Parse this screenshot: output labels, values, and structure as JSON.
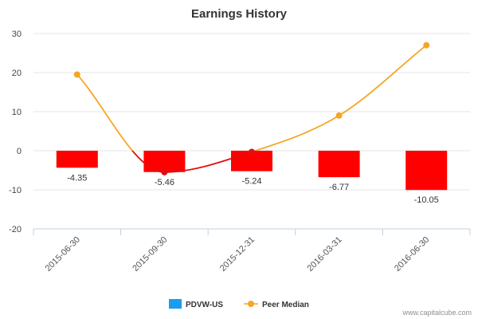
{
  "chart_data": {
    "type": "bar",
    "title": "Earnings History",
    "categories": [
      "2015-06-30",
      "2015-09-30",
      "2015-12-31",
      "2016-03-31",
      "2016-06-30"
    ],
    "series": [
      {
        "name": "PDVW-US",
        "type": "bar",
        "values": [
          -4.35,
          -5.46,
          -5.24,
          -6.77,
          -10.05
        ],
        "data_labels": [
          "-4.35",
          "-5.46",
          "-5.24",
          "-6.77",
          "-10.05"
        ]
      },
      {
        "name": "Peer Median",
        "type": "line",
        "values": [
          19.5,
          -5.5,
          -0.3,
          9.0,
          27.0
        ]
      }
    ],
    "ylim": [
      -20,
      30
    ],
    "yticks": [
      "-20",
      "-10",
      "0",
      "10",
      "20",
      "30"
    ],
    "xlabel": "",
    "ylabel": "",
    "legend_position": "bottom-center",
    "colors": {
      "bar": "#ff0000",
      "line_positive": "#f5a623",
      "line_negative": "#e01010",
      "legend_bar": "#1e9bea"
    }
  },
  "credit": "www.capitalcube.com"
}
